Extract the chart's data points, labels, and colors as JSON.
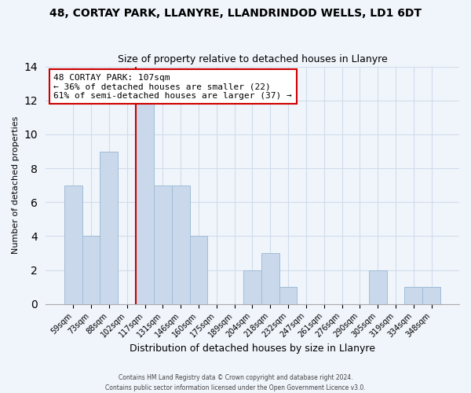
{
  "title": "48, CORTAY PARK, LLANYRE, LLANDRINDOD WELLS, LD1 6DT",
  "subtitle": "Size of property relative to detached houses in Llanyre",
  "xlabel": "Distribution of detached houses by size in Llanyre",
  "ylabel": "Number of detached properties",
  "bar_labels": [
    "59sqm",
    "73sqm",
    "88sqm",
    "102sqm",
    "117sqm",
    "131sqm",
    "146sqm",
    "160sqm",
    "175sqm",
    "189sqm",
    "204sqm",
    "218sqm",
    "232sqm",
    "247sqm",
    "261sqm",
    "276sqm",
    "290sqm",
    "305sqm",
    "319sqm",
    "334sqm",
    "348sqm"
  ],
  "bar_values": [
    7,
    4,
    9,
    0,
    12,
    7,
    7,
    4,
    0,
    0,
    2,
    3,
    1,
    0,
    0,
    0,
    0,
    2,
    0,
    1,
    1
  ],
  "bar_color": "#c9d9eb",
  "bar_edge_color": "#a0bcd5",
  "property_line_label": "48 CORTAY PARK: 107sqm",
  "annotation_line1": "← 36% of detached houses are smaller (22)",
  "annotation_line2": "61% of semi-detached houses are larger (37) →",
  "annotation_box_color": "#ffffff",
  "annotation_box_edge_color": "#cc0000",
  "vline_color": "#cc0000",
  "vline_x_index": 3.5,
  "ylim": [
    0,
    14
  ],
  "yticks": [
    0,
    2,
    4,
    6,
    8,
    10,
    12,
    14
  ],
  "footer_line1": "Contains HM Land Registry data © Crown copyright and database right 2024.",
  "footer_line2": "Contains public sector information licensed under the Open Government Licence v3.0.",
  "bg_color": "#f0f5fb",
  "plot_bg_color": "#f0f5fb",
  "grid_color": "#d0dcea",
  "title_fontsize": 10,
  "subtitle_fontsize": 9,
  "xlabel_fontsize": 9,
  "ylabel_fontsize": 8,
  "tick_fontsize": 7,
  "annot_fontsize": 8
}
